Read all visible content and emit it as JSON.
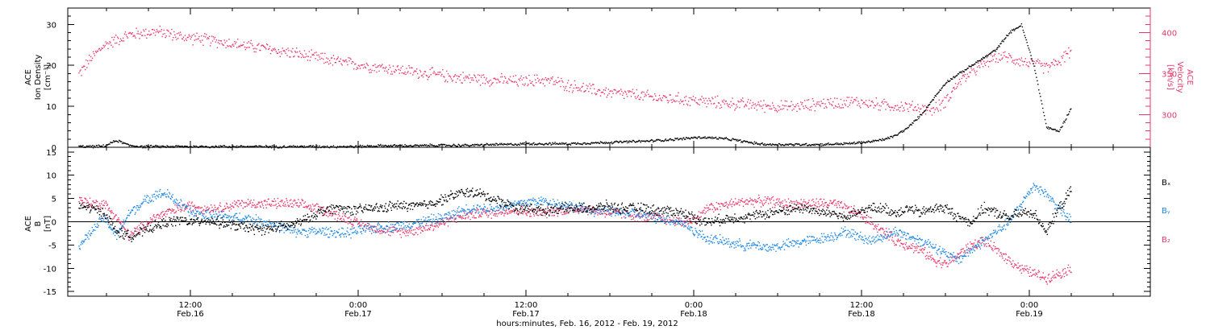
{
  "colors": {
    "black": "#000000",
    "blue": "#1e88e5",
    "red": "#e8386a"
  },
  "chart_data": [
    {
      "type": "scatter",
      "panel": "plasma",
      "ylabel_left": [
        "ACE",
        "Ion Density",
        "[cm⁻³]"
      ],
      "ylabel_right": [
        "ACE",
        "Velocity",
        "[km/s]"
      ],
      "ylim_left": [
        0,
        34
      ],
      "yticks_left": [
        "0",
        "10",
        "20",
        "30"
      ],
      "ylim_right": [
        260,
        430
      ],
      "yticks_right": [
        "300",
        "350",
        "400"
      ],
      "series": [
        {
          "axis": "right",
          "color": "#e8386a",
          "x": [
            0,
            1,
            2,
            3,
            4,
            5,
            6,
            7,
            8,
            9,
            10,
            11,
            12,
            13,
            14,
            15,
            16,
            17,
            18,
            19,
            20,
            21,
            22,
            23,
            24,
            25,
            26,
            27,
            28,
            29,
            30,
            31,
            32,
            33,
            34,
            35,
            36,
            37,
            38,
            39,
            40,
            41,
            42,
            43,
            44,
            45,
            46,
            47,
            48,
            49,
            50,
            51,
            52,
            53,
            54,
            55,
            56,
            57,
            58,
            59,
            60,
            61,
            62,
            63,
            64,
            65,
            66,
            67,
            68,
            69,
            70,
            71,
            72,
            73,
            74,
            75,
            76,
            77,
            78,
            79
          ],
          "y": [
            350,
            370,
            385,
            392,
            398,
            400,
            402,
            400,
            396,
            394,
            392,
            390,
            388,
            385,
            383,
            381,
            378,
            376,
            372,
            370,
            367,
            364,
            362,
            360,
            358,
            356,
            354,
            352,
            350,
            348,
            346,
            345,
            344,
            343,
            342,
            341,
            342,
            343,
            340,
            336,
            333,
            330,
            328,
            326,
            325,
            323,
            321,
            320,
            319,
            318,
            316,
            315,
            314,
            313,
            312,
            311,
            310,
            310,
            312,
            314,
            315,
            316,
            316,
            314,
            312,
            311,
            310,
            308,
            306,
            318,
            340,
            352,
            362,
            372,
            370,
            366,
            362,
            358,
            365,
            380
          ]
        },
        {
          "axis": "left",
          "color": "#000000",
          "x": [
            0,
            1,
            2,
            3,
            4,
            5,
            6,
            7,
            8,
            9,
            10,
            11,
            12,
            13,
            14,
            15,
            16,
            17,
            18,
            19,
            20,
            21,
            22,
            23,
            24,
            25,
            26,
            27,
            28,
            29,
            30,
            31,
            32,
            33,
            34,
            35,
            36,
            37,
            38,
            39,
            40,
            41,
            42,
            43,
            44,
            45,
            46,
            47,
            48,
            49,
            50,
            51,
            52,
            53,
            54,
            55,
            56,
            57,
            58,
            59,
            60,
            61,
            62,
            63,
            64,
            65,
            66,
            67,
            68,
            69,
            70,
            71,
            72,
            73,
            74,
            75,
            76,
            77,
            78,
            79
          ],
          "y": [
            0.3,
            0.3,
            0.4,
            1.8,
            0.6,
            0.3,
            0.3,
            0.3,
            0.3,
            0.3,
            0.3,
            0.3,
            0.3,
            0.3,
            0.3,
            0.3,
            0.3,
            0.3,
            0.3,
            0.3,
            0.3,
            0.3,
            0.3,
            0.4,
            0.5,
            0.5,
            0.5,
            0.5,
            0.6,
            0.6,
            0.6,
            0.6,
            0.7,
            0.8,
            0.8,
            0.9,
            1.0,
            1.0,
            1.0,
            1.0,
            1.1,
            1.2,
            1.3,
            1.4,
            1.5,
            1.6,
            1.8,
            2.0,
            2.2,
            2.5,
            2.5,
            2.3,
            2.0,
            1.5,
            1.0,
            0.8,
            0.8,
            0.8,
            0.8,
            0.8,
            0.9,
            1.0,
            1.2,
            1.5,
            2.0,
            3.0,
            5.0,
            8.0,
            12.0,
            16.0,
            18.0,
            20.0,
            22.0,
            24.0,
            28.0,
            30.0,
            20.0,
            5.0,
            4.0,
            10.0
          ]
        }
      ]
    },
    {
      "type": "scatter",
      "panel": "field",
      "ylabel_left": [
        "ACE",
        "B",
        "[nT]"
      ],
      "ylim_left": [
        -16,
        16
      ],
      "yticks_left": [
        "-15",
        "-10",
        "-5",
        "0",
        "5",
        "10",
        "15"
      ],
      "legend_right": [
        "Bₓ",
        "Bᵧ",
        "B₂"
      ],
      "series": [
        {
          "name": "Bx",
          "color": "#000000",
          "x": [
            0,
            1,
            2,
            3,
            4,
            5,
            6,
            7,
            8,
            9,
            10,
            11,
            12,
            13,
            14,
            15,
            16,
            17,
            18,
            19,
            20,
            21,
            22,
            23,
            24,
            25,
            26,
            27,
            28,
            29,
            30,
            31,
            32,
            33,
            34,
            35,
            36,
            37,
            38,
            39,
            40,
            41,
            42,
            43,
            44,
            45,
            46,
            47,
            48,
            49,
            50,
            51,
            52,
            53,
            54,
            55,
            56,
            57,
            58,
            59,
            60,
            61,
            62,
            63,
            64,
            65,
            66,
            67,
            68,
            69,
            70,
            71,
            72,
            73,
            74,
            75,
            76,
            77,
            78,
            79
          ],
          "y": [
            3.5,
            3.0,
            2.0,
            -2.0,
            -3.0,
            -2.0,
            -1.0,
            0.0,
            0.5,
            0.0,
            0.5,
            0.0,
            -0.5,
            -1.0,
            -1.5,
            -1.5,
            -1.0,
            -0.5,
            0.5,
            2.0,
            3.0,
            3.0,
            2.5,
            3.0,
            3.0,
            3.5,
            3.5,
            3.5,
            4.0,
            5.0,
            6.0,
            6.5,
            6.0,
            5.0,
            4.0,
            3.0,
            3.0,
            2.5,
            3.0,
            3.0,
            3.0,
            3.0,
            3.5,
            3.0,
            3.0,
            3.0,
            2.5,
            2.5,
            2.0,
            1.0,
            0.0,
            0.5,
            1.0,
            1.0,
            1.5,
            2.0,
            2.5,
            3.0,
            3.0,
            2.0,
            2.0,
            1.0,
            2.0,
            3.0,
            3.0,
            2.0,
            3.0,
            2.0,
            3.0,
            3.0,
            1.0,
            0.0,
            3.0,
            2.0,
            1.0,
            2.0,
            2.0,
            -2.0,
            3.0,
            7.0
          ]
        },
        {
          "name": "By",
          "color": "#1e88e5",
          "x": [
            0,
            1,
            2,
            3,
            4,
            5,
            6,
            7,
            8,
            9,
            10,
            11,
            12,
            13,
            14,
            15,
            16,
            17,
            18,
            19,
            20,
            21,
            22,
            23,
            24,
            25,
            26,
            27,
            28,
            29,
            30,
            31,
            32,
            33,
            34,
            35,
            36,
            37,
            38,
            39,
            40,
            41,
            42,
            43,
            44,
            45,
            46,
            47,
            48,
            49,
            50,
            51,
            52,
            53,
            54,
            55,
            56,
            57,
            58,
            59,
            60,
            61,
            62,
            63,
            64,
            65,
            66,
            67,
            68,
            69,
            70,
            71,
            72,
            73,
            74,
            75,
            76,
            77,
            78,
            79
          ],
          "y": [
            -5.0,
            -2.0,
            1.0,
            -3.0,
            2.0,
            4.0,
            6.0,
            6.0,
            4.0,
            2.0,
            1.5,
            1.5,
            1.0,
            1.0,
            0.5,
            0.0,
            -1.0,
            -2.0,
            -2.0,
            -2.0,
            -2.0,
            -2.5,
            -2.0,
            -1.5,
            -1.0,
            -1.0,
            -0.5,
            0.0,
            0.5,
            1.0,
            2.0,
            3.0,
            3.0,
            3.0,
            3.5,
            4.0,
            4.5,
            4.5,
            4.0,
            3.5,
            3.0,
            2.5,
            2.5,
            2.0,
            2.0,
            1.5,
            1.0,
            0.5,
            0.0,
            -2.0,
            -3.5,
            -4.0,
            -4.5,
            -5.0,
            -5.0,
            -5.5,
            -5.0,
            -4.5,
            -4.0,
            -3.5,
            -3.0,
            -2.0,
            -3.0,
            -4.0,
            -3.0,
            -2.0,
            -3.0,
            -4.0,
            -5.0,
            -7.0,
            -8.0,
            -6.0,
            -4.0,
            -2.0,
            0.0,
            4.0,
            8.0,
            6.0,
            3.0,
            0.0
          ]
        },
        {
          "name": "Bz",
          "color": "#e8386a",
          "x": [
            0,
            1,
            2,
            3,
            4,
            5,
            6,
            7,
            8,
            9,
            10,
            11,
            12,
            13,
            14,
            15,
            16,
            17,
            18,
            19,
            20,
            21,
            22,
            23,
            24,
            25,
            26,
            27,
            28,
            29,
            30,
            31,
            32,
            33,
            34,
            35,
            36,
            37,
            38,
            39,
            40,
            41,
            42,
            43,
            44,
            45,
            46,
            47,
            48,
            49,
            50,
            51,
            52,
            53,
            54,
            55,
            56,
            57,
            58,
            59,
            60,
            61,
            62,
            63,
            64,
            65,
            66,
            67,
            68,
            69,
            70,
            71,
            72,
            73,
            74,
            75,
            76,
            77,
            78,
            79
          ],
          "y": [
            5.0,
            4.0,
            4.0,
            1.0,
            -3.0,
            -1.0,
            1.0,
            2.0,
            3.0,
            3.5,
            3.0,
            3.0,
            3.5,
            4.0,
            4.0,
            4.0,
            4.0,
            4.0,
            3.5,
            3.0,
            2.0,
            1.0,
            0.0,
            -1.0,
            -1.5,
            -2.0,
            -2.0,
            -1.5,
            -1.0,
            0.0,
            1.0,
            1.5,
            2.0,
            2.0,
            2.5,
            2.5,
            2.0,
            2.0,
            2.5,
            2.5,
            3.0,
            2.5,
            2.0,
            2.0,
            1.5,
            1.0,
            1.0,
            0.5,
            0.0,
            0.5,
            3.0,
            3.5,
            4.0,
            4.5,
            4.5,
            4.5,
            4.0,
            4.0,
            4.0,
            4.0,
            4.0,
            3.0,
            2.0,
            0.0,
            -2.0,
            -4.0,
            -5.0,
            -6.0,
            -8.0,
            -9.0,
            -7.0,
            -5.0,
            -4.0,
            -6.0,
            -8.0,
            -10.0,
            -11.0,
            -12.0,
            -11.0,
            -10.0
          ]
        }
      ]
    }
  ],
  "xaxis": {
    "title": "hours:minutes, Feb. 16, 2012 - Feb. 19, 2012",
    "ticks": [
      {
        "time": "12:00",
        "date": "Feb.16"
      },
      {
        "time": "0:00",
        "date": "Feb.17"
      },
      {
        "time": "12:00",
        "date": "Feb.17"
      },
      {
        "time": "0:00",
        "date": "Feb.18"
      },
      {
        "time": "12:00",
        "date": "Feb.18"
      },
      {
        "time": "0:00",
        "date": "Feb.19"
      }
    ]
  }
}
